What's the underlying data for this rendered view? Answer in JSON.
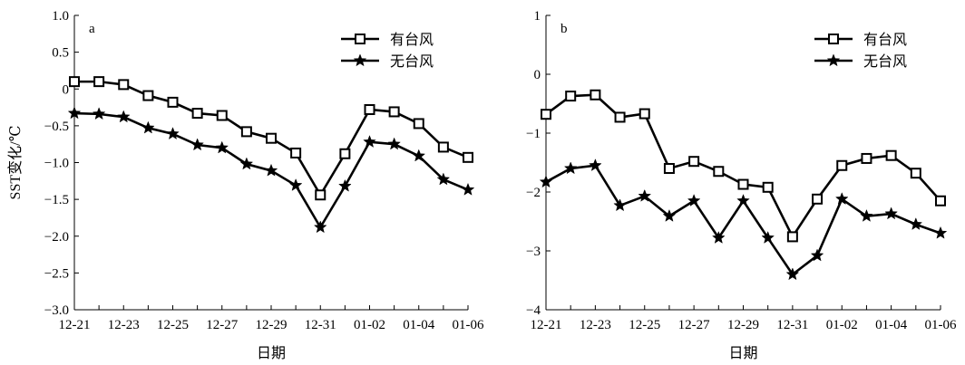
{
  "chart_data": [
    {
      "type": "line",
      "panel_label": "a",
      "xlabel": "日期",
      "ylabel": "SST变化/℃",
      "ylim": [
        -3.0,
        1.0
      ],
      "yticks": [
        "1.0",
        "0.5",
        "0",
        "−0.5",
        "−1.0",
        "−1.5",
        "−2.0",
        "−2.5",
        "−3.0"
      ],
      "ytick_values": [
        1.0,
        0.5,
        0,
        -0.5,
        -1.0,
        -1.5,
        -2.0,
        -2.5,
        -3.0
      ],
      "xticks": [
        "12-21",
        "12-23",
        "12-25",
        "12-27",
        "12-29",
        "12-31",
        "01-02",
        "01-04",
        "01-06"
      ],
      "x_count": 17,
      "legend_position": "top-right",
      "series": [
        {
          "name": "有台风",
          "marker": "square",
          "values": [
            0.1,
            0.1,
            0.06,
            -0.09,
            -0.18,
            -0.33,
            -0.36,
            -0.58,
            -0.67,
            -0.87,
            -1.44,
            -0.88,
            -0.28,
            -0.31,
            -0.47,
            -0.79,
            -0.93
          ]
        },
        {
          "name": "无台风",
          "marker": "star",
          "values": [
            -0.33,
            -0.34,
            -0.38,
            -0.53,
            -0.61,
            -0.76,
            -0.8,
            -1.02,
            -1.11,
            -1.31,
            -1.88,
            -1.32,
            -0.72,
            -0.75,
            -0.91,
            -1.23,
            -1.37
          ]
        }
      ]
    },
    {
      "type": "line",
      "panel_label": "b",
      "xlabel": "日期",
      "ylabel": "",
      "ylim": [
        -4,
        1
      ],
      "yticks": [
        "1",
        "0",
        "−1",
        "−2",
        "−3",
        "−4"
      ],
      "ytick_values": [
        1,
        0,
        -1,
        -2,
        -3,
        -4
      ],
      "xticks": [
        "12-21",
        "12-23",
        "12-25",
        "12-27",
        "12-29",
        "12-31",
        "01-02",
        "01-04",
        "01-06"
      ],
      "x_count": 17,
      "legend_position": "top-right",
      "series": [
        {
          "name": "有台风",
          "marker": "square",
          "values": [
            -0.68,
            -0.37,
            -0.35,
            -0.73,
            -0.67,
            -1.6,
            -1.48,
            -1.65,
            -1.87,
            -1.92,
            -2.76,
            -2.12,
            -1.55,
            -1.43,
            -1.38,
            -1.68,
            -2.15
          ]
        },
        {
          "name": "无台风",
          "marker": "star",
          "values": [
            -1.83,
            -1.6,
            -1.55,
            -2.23,
            -2.07,
            -2.41,
            -2.15,
            -2.78,
            -2.15,
            -2.78,
            -3.4,
            -3.08,
            -2.12,
            -2.41,
            -2.37,
            -2.55,
            -2.7
          ]
        }
      ]
    }
  ]
}
